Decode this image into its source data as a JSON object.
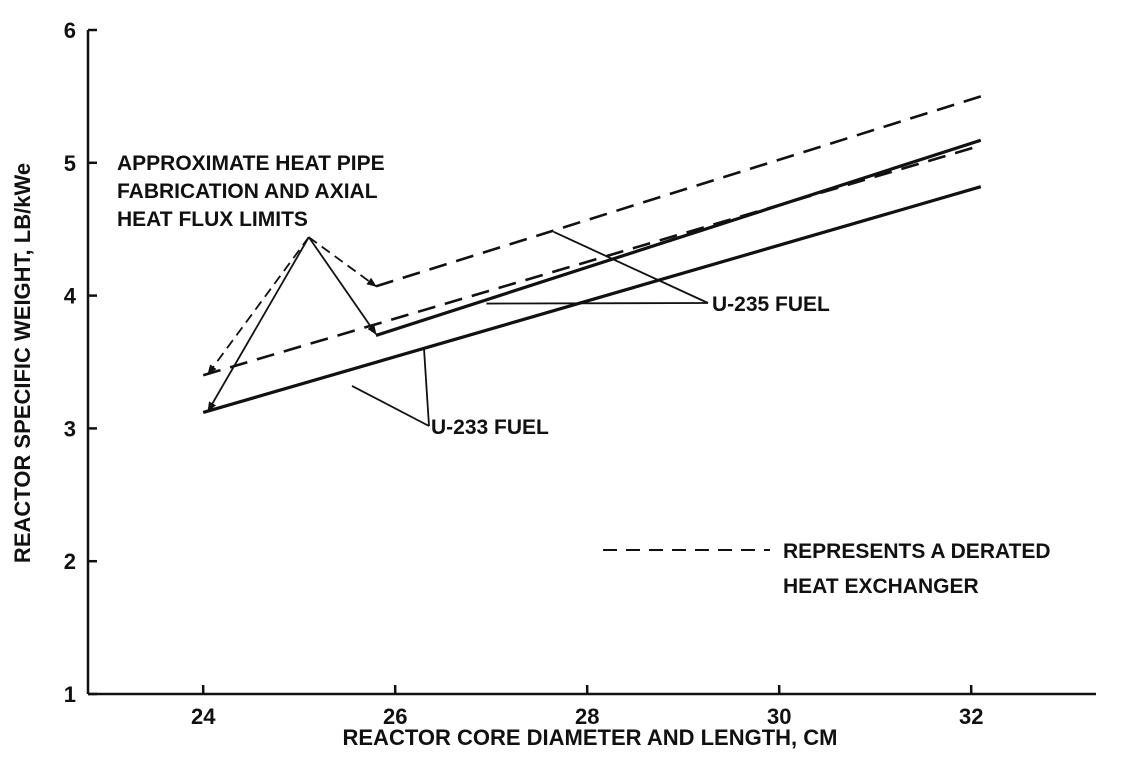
{
  "chart_data": {
    "type": "line",
    "title": "",
    "xlabel": "REACTOR CORE DIAMETER AND LENGTH, CM",
    "ylabel": "REACTOR SPECIFIC WEIGHT, LB/kWe",
    "xlim": [
      22.8,
      33.3
    ],
    "ylim": [
      1,
      6
    ],
    "xticks": [
      24,
      26,
      28,
      30,
      32
    ],
    "yticks": [
      1,
      2,
      3,
      4,
      5,
      6
    ],
    "grid": false,
    "series": [
      {
        "style": "solid",
        "x": [
          24,
          32.1
        ],
        "y": [
          3.12,
          4.82
        ]
      },
      {
        "style": "solid",
        "x": [
          25.8,
          32.1
        ],
        "y": [
          3.7,
          5.17
        ]
      },
      {
        "style": "dashed",
        "x": [
          24,
          32.1
        ],
        "y": [
          3.4,
          5.13
        ]
      },
      {
        "style": "dashed",
        "x": [
          25.8,
          32.1
        ],
        "y": [
          4.07,
          5.5
        ]
      }
    ],
    "annotations": {
      "limits": {
        "lines": [
          "APPROXIMATE HEAT PIPE",
          "FABRICATION AND AXIAL",
          "HEAT FLUX LIMITS"
        ]
      },
      "u235": "U-235 FUEL",
      "u233": "U-233 FUEL",
      "derated": {
        "lines": [
          "REPRESENTS A DERATED",
          "HEAT EXCHANGER"
        ]
      }
    }
  }
}
